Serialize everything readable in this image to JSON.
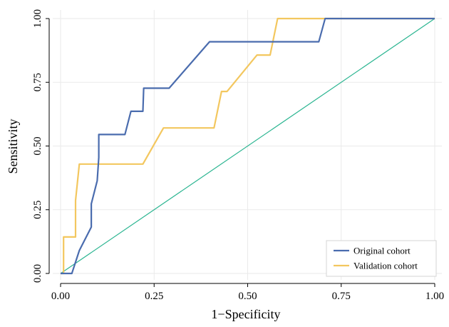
{
  "chart_data": {
    "type": "line",
    "xlabel": "1−Specificity",
    "ylabel": "Sensitivity",
    "xlim": [
      0,
      1
    ],
    "ylim": [
      0,
      1
    ],
    "xticks": [
      "0.00",
      "0.25",
      "0.50",
      "0.75",
      "1.00"
    ],
    "yticks": [
      "0.00",
      "0.25",
      "0.50",
      "0.75",
      "1.00"
    ],
    "xtick_values": [
      0,
      0.25,
      0.5,
      0.75,
      1
    ],
    "ytick_values": [
      0,
      0.25,
      0.5,
      0.75,
      1
    ],
    "grid": true,
    "legend_position": "bottom-right",
    "series": [
      {
        "name": "Original cohort",
        "color": "#4a6cae",
        "points": [
          [
            0,
            0
          ],
          [
            0.03,
            0
          ],
          [
            0.05,
            0.09
          ],
          [
            0.082,
            0.182
          ],
          [
            0.082,
            0.273
          ],
          [
            0.098,
            0.364
          ],
          [
            0.102,
            0.455
          ],
          [
            0.102,
            0.545
          ],
          [
            0.172,
            0.545
          ],
          [
            0.188,
            0.636
          ],
          [
            0.22,
            0.636
          ],
          [
            0.222,
            0.727
          ],
          [
            0.29,
            0.727
          ],
          [
            0.398,
            0.909
          ],
          [
            0.69,
            0.909
          ],
          [
            0.707,
            1
          ],
          [
            1,
            1
          ]
        ]
      },
      {
        "name": "Validation cohort",
        "color": "#f3c75f",
        "points": [
          [
            0,
            0
          ],
          [
            0.008,
            0
          ],
          [
            0.008,
            0.143
          ],
          [
            0.04,
            0.143
          ],
          [
            0.04,
            0.286
          ],
          [
            0.05,
            0.429
          ],
          [
            0.22,
            0.429
          ],
          [
            0.275,
            0.571
          ],
          [
            0.41,
            0.571
          ],
          [
            0.43,
            0.714
          ],
          [
            0.445,
            0.714
          ],
          [
            0.525,
            0.857
          ],
          [
            0.56,
            0.857
          ],
          [
            0.58,
            1
          ],
          [
            1,
            1
          ]
        ]
      },
      {
        "color": "#2bb591",
        "points": [
          [
            0,
            0
          ],
          [
            1,
            1
          ]
        ]
      }
    ]
  }
}
